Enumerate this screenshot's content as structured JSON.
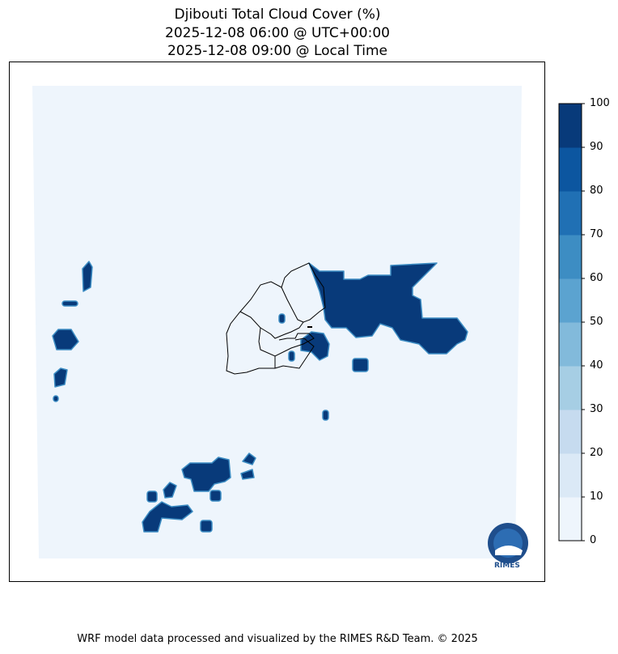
{
  "title": {
    "line1": "Djibouti Total Cloud Cover (%)",
    "line2": "2025-12-08 06:00 @ UTC+00:00",
    "line3": "2025-12-08 09:00 @ Local Time"
  },
  "colorbar": {
    "ticks": [
      "0",
      "10",
      "20",
      "30",
      "40",
      "50",
      "60",
      "70",
      "80",
      "90",
      "100"
    ],
    "colors": [
      "#eef5fc",
      "#dbe9f6",
      "#c6dbef",
      "#a6cee4",
      "#82badb",
      "#5ba3d0",
      "#3d8dc3",
      "#2070b4",
      "#0c56a0",
      "#083a7a"
    ]
  },
  "logo": {
    "text": "RIMES"
  },
  "footer": "WRF model data processed and visualized by the RIMES R&D Team. © 2025"
}
